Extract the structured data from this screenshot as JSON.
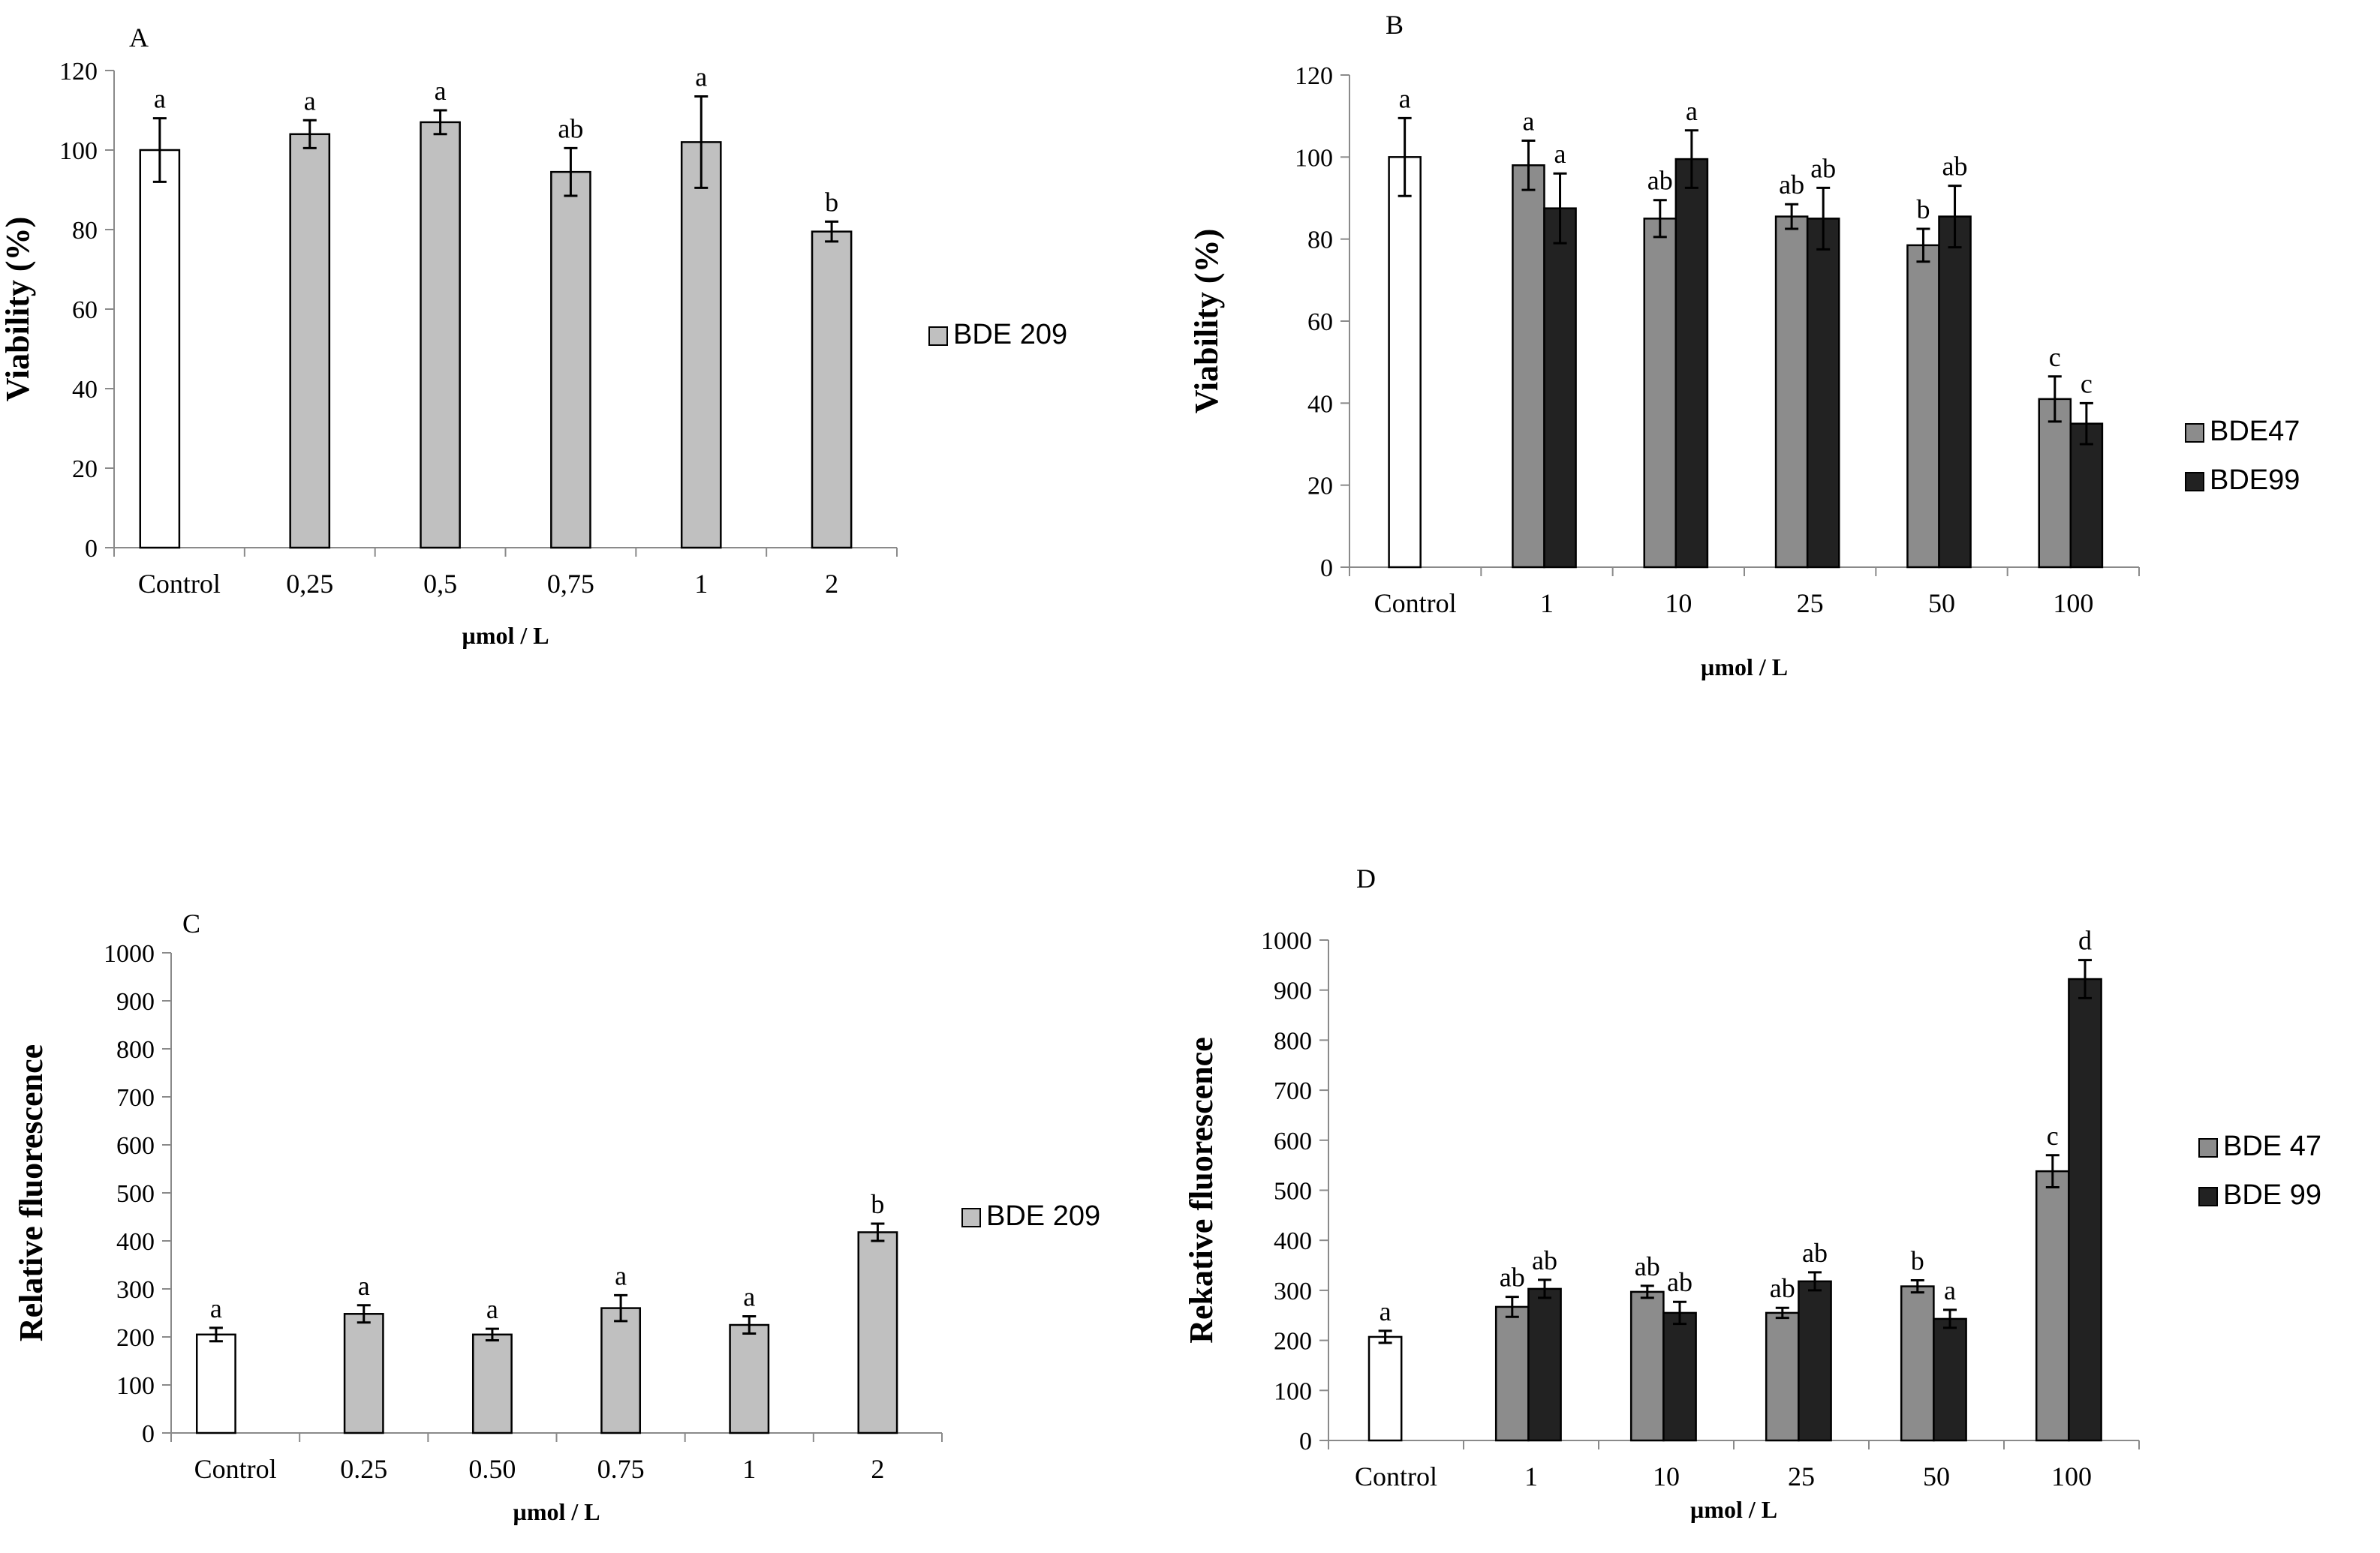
{
  "figure": {
    "panels": [
      {
        "id": "A",
        "label": "A"
      },
      {
        "id": "B",
        "label": "B"
      },
      {
        "id": "C",
        "label": "C"
      },
      {
        "id": "D",
        "label": "D"
      }
    ]
  },
  "colors": {
    "control": "#ffffff",
    "bde209": "#c0c0c0",
    "bde47": "#8c8c8c",
    "bde99": "#222222",
    "outline": "#000000",
    "axis": "#8a8a8a"
  },
  "chart_data": [
    {
      "id": "A",
      "type": "bar",
      "panel_label": "A",
      "title": "",
      "xlabel": "µmol / L",
      "ylabel": "Viability (%)",
      "ylim": [
        0,
        120
      ],
      "yticks": [
        0,
        20,
        40,
        60,
        80,
        100,
        120
      ],
      "grid": false,
      "legend_position": "right",
      "categories": [
        "Control",
        "0,25",
        "0,5",
        "0,75",
        "1",
        "2"
      ],
      "control": {
        "value": 100,
        "error": 8,
        "letter": "a"
      },
      "series": [
        {
          "name": "BDE 209",
          "color_key": "bde209",
          "values": [
            null,
            104,
            107,
            94.5,
            102,
            79.5
          ],
          "errors": [
            null,
            3.5,
            3,
            6,
            11.5,
            2.5
          ],
          "letters": [
            null,
            "a",
            "a",
            "ab",
            "a",
            "b"
          ]
        }
      ]
    },
    {
      "id": "B",
      "type": "bar",
      "panel_label": "B",
      "title": "",
      "xlabel": "µmol / L",
      "ylabel": "Viability (%)",
      "ylim": [
        0,
        120
      ],
      "yticks": [
        0,
        20,
        40,
        60,
        80,
        100,
        120
      ],
      "grid": false,
      "legend_position": "right",
      "categories": [
        "Control",
        "1",
        "10",
        "25",
        "50",
        "100"
      ],
      "control": {
        "value": 100,
        "error": 9.5,
        "letter": "a"
      },
      "series": [
        {
          "name": "BDE47",
          "color_key": "bde47",
          "values": [
            null,
            98,
            85,
            85.5,
            78.5,
            41
          ],
          "errors": [
            null,
            6,
            4.5,
            3,
            4,
            5.5
          ],
          "letters": [
            null,
            "a",
            "ab",
            "ab",
            "b",
            "c"
          ]
        },
        {
          "name": "BDE99",
          "color_key": "bde99",
          "values": [
            null,
            87.5,
            99.5,
            85,
            85.5,
            35
          ],
          "errors": [
            null,
            8.5,
            7,
            7.5,
            7.5,
            5
          ],
          "letters": [
            null,
            "a",
            "a",
            "ab",
            "ab",
            "c"
          ]
        }
      ]
    },
    {
      "id": "C",
      "type": "bar",
      "panel_label": "C",
      "title": "",
      "xlabel": "µmol / L",
      "ylabel": "Relative fluorescence",
      "ylim": [
        0,
        1000
      ],
      "yticks": [
        0,
        100,
        200,
        300,
        400,
        500,
        600,
        700,
        800,
        900,
        1000
      ],
      "grid": false,
      "legend_position": "right",
      "categories": [
        "Control",
        "0.25",
        "0.50",
        "0.75",
        "1",
        "2"
      ],
      "control": {
        "value": 205,
        "error": 14,
        "letter": "a"
      },
      "series": [
        {
          "name": "BDE 209",
          "color_key": "bde209",
          "values": [
            null,
            248,
            205,
            260,
            225,
            418
          ],
          "errors": [
            null,
            18,
            12,
            27,
            18,
            18
          ],
          "letters": [
            null,
            "a",
            "a",
            "a",
            "a",
            "b"
          ]
        }
      ]
    },
    {
      "id": "D",
      "type": "bar",
      "panel_label": "D",
      "title": "",
      "xlabel": "µmol / L",
      "ylabel": "Rekative fluorescence",
      "ylim": [
        0,
        1000
      ],
      "yticks": [
        0,
        100,
        200,
        300,
        400,
        500,
        600,
        700,
        800,
        900,
        1000
      ],
      "grid": false,
      "legend_position": "right",
      "categories": [
        "Control",
        "1",
        "10",
        "25",
        "50",
        "100"
      ],
      "control": {
        "value": 207,
        "error": 12,
        "letter": "a"
      },
      "series": [
        {
          "name": "BDE 47",
          "color_key": "bde47",
          "values": [
            null,
            267,
            297,
            255,
            308,
            538
          ],
          "errors": [
            null,
            20,
            12,
            10,
            12,
            32
          ],
          "letters": [
            null,
            "ab",
            "ab",
            "ab",
            "b",
            "c"
          ]
        },
        {
          "name": "BDE 99",
          "color_key": "bde99",
          "values": [
            null,
            303,
            255,
            318,
            243,
            922
          ],
          "errors": [
            null,
            18,
            22,
            18,
            18,
            38
          ],
          "letters": [
            null,
            "ab",
            "ab",
            "ab",
            "a",
            "d"
          ]
        }
      ]
    }
  ]
}
